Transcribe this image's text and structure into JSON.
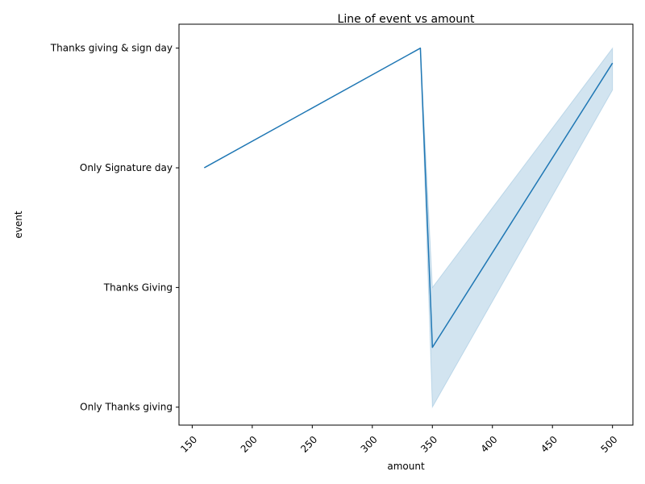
{
  "chart_data": {
    "type": "line",
    "title": "Line of event vs amount",
    "xlabel": "amount",
    "ylabel": "event",
    "xlim": [
      139,
      517
    ],
    "x_ticks": [
      150,
      200,
      250,
      300,
      350,
      400,
      450,
      500
    ],
    "y_categories": [
      "Only Thanks giving",
      "Thanks Giving",
      "Only Signature day",
      "Thanks giving & sign day"
    ],
    "ylim": [
      -0.15,
      3.2
    ],
    "series": [
      {
        "name": "event",
        "color": "#1f77b4",
        "band_color": "#1f77b4",
        "x": [
          160,
          340,
          350,
          500
        ],
        "y": [
          2,
          3,
          0.5,
          2.875
        ],
        "ci_lower": [
          2,
          3,
          0,
          2.65
        ],
        "ci_upper": [
          2,
          3,
          1,
          3
        ]
      }
    ],
    "grid": false,
    "legend": "none"
  }
}
